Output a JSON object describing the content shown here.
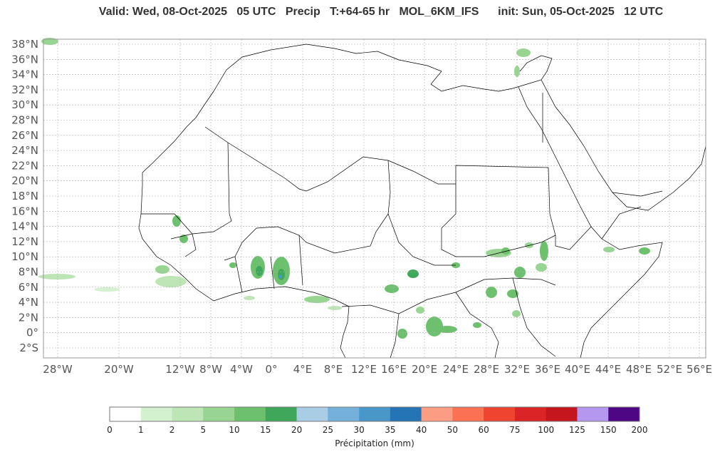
{
  "header": {
    "title": "Valid: Wed, 08-Oct-2025   05 UTC   Precip   T:+64-65 hr   MOL_6KM_IFS      init: Sun, 05-Oct-2025   12 UTC"
  },
  "map": {
    "lat_labels": [
      "38°N",
      "36°N",
      "34°N",
      "32°N",
      "30°N",
      "28°N",
      "26°N",
      "24°N",
      "22°N",
      "20°N",
      "18°N",
      "16°N",
      "14°N",
      "12°N",
      "10°N",
      "8°N",
      "6°N",
      "4°N",
      "2°N",
      "0°",
      "2°S"
    ],
    "lon_labels": [
      "28°W",
      "20°W",
      "12°W",
      "8°W",
      "4°W",
      "0°",
      "4°E",
      "8°E",
      "12°E",
      "16°E",
      "20°E",
      "24°E",
      "28°E",
      "32°E",
      "36°E",
      "40°E",
      "44°E",
      "48°E",
      "52°E",
      "56°E"
    ],
    "colors": {
      "border": "#000000",
      "grid": "#b0b0b0",
      "frame": "#999999"
    }
  },
  "legend": {
    "label": "Précipitation (mm)",
    "ticks": [
      "0",
      "1",
      "2",
      "5",
      "10",
      "15",
      "20",
      "25",
      "30",
      "35",
      "40",
      "50",
      "60",
      "75",
      "100",
      "125",
      "150",
      "200"
    ],
    "colors": [
      "#ffffff",
      "#d3f0cf",
      "#bde5b5",
      "#98d592",
      "#6dc06d",
      "#3fa75a",
      "#a8cde4",
      "#74b0d9",
      "#4997c9",
      "#2574b6",
      "#fb9d82",
      "#fa7154",
      "#ef4430",
      "#db2425",
      "#c4161c",
      "#b498ef",
      "#4f0685"
    ]
  }
}
